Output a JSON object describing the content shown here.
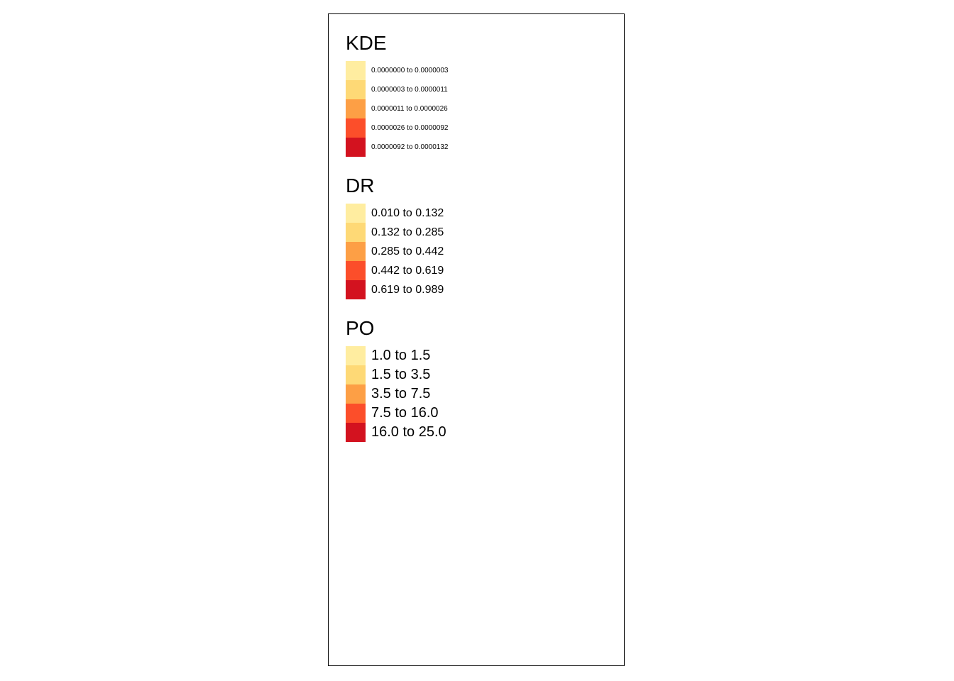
{
  "palette": [
    "#ffeda0",
    "#fed976",
    "#fd9f45",
    "#fc4e2a",
    "#d3121f"
  ],
  "legends": {
    "kde": {
      "title": "KDE",
      "labels": [
        "0.0000000 to 0.0000003",
        "0.0000003 to 0.0000011",
        "0.0000011 to 0.0000026",
        "0.0000026 to 0.0000092",
        "0.0000092 to 0.0000132"
      ]
    },
    "dr": {
      "title": "DR",
      "labels": [
        "0.010 to 0.132",
        "0.132 to 0.285",
        "0.285 to 0.442",
        "0.442 to 0.619",
        "0.619 to 0.989"
      ]
    },
    "po": {
      "title": "PO",
      "labels": [
        "1.0 to 1.5",
        "1.5 to 3.5",
        "3.5 to 7.5",
        "7.5 to 16.0",
        "16.0 to 25.0"
      ]
    }
  }
}
